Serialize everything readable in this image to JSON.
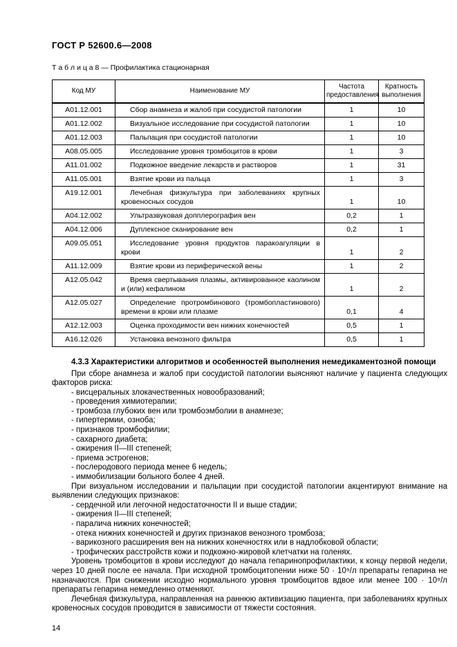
{
  "page": {
    "doc_code": "ГОСТ Р 52600.6—2008",
    "table_caption": "Т а б л и ц а  8 — Профилактика стационарная",
    "page_number": "14"
  },
  "table": {
    "headers": [
      "Код МУ",
      "Наименование МУ",
      "Частота предоставления",
      "Кратность выполнения"
    ],
    "rows": [
      {
        "code": "А01.12.001",
        "name": "Сбор анамнеза и жалоб при сосудистой патологии",
        "freq": "1",
        "mult": "10"
      },
      {
        "code": "А01.12.002",
        "name": "Визуальное исследование при сосудистой патологии",
        "freq": "1",
        "mult": "10"
      },
      {
        "code": "А01.12.003",
        "name": "Пальпация при сосудистой патологии",
        "freq": "1",
        "mult": "10"
      },
      {
        "code": "А08.05.005",
        "name": "Исследование уровня тромбоцитов в крови",
        "freq": "1",
        "mult": "3"
      },
      {
        "code": "А11.01.002",
        "name": "Подкожное введение лекарств и растворов",
        "freq": "1",
        "mult": "31"
      },
      {
        "code": "А11.05.001",
        "name": "Взятие крови из пальца",
        "freq": "1",
        "mult": "3"
      },
      {
        "code": "А19.12.001",
        "name": "Лечебная физкультура при заболеваниях крупных кровеносных сосудов",
        "freq": "1",
        "mult": "10"
      },
      {
        "code": "А04.12.002",
        "name": "Ультразвуковая допплерография вен",
        "freq": "0,2",
        "mult": "1"
      },
      {
        "code": "А04.12.006",
        "name": "Дуплексное сканирование вен",
        "freq": "0,2",
        "mult": "1"
      },
      {
        "code": "А09.05.051",
        "name": "Исследование уровня продуктов паракоагуляции в крови",
        "freq": "1",
        "mult": "2"
      },
      {
        "code": "А11.12.009",
        "name": "Взятие крови из периферической вены",
        "freq": "1",
        "mult": "2"
      },
      {
        "code": "А12.05.042",
        "name": "Время свертывания плазмы, активированное каолином и (или) кефалином",
        "freq": "1",
        "mult": "2"
      },
      {
        "code": "А12.05.027",
        "name": "Определение протромбинового (тромбопластинового) времени в крови или плазме",
        "freq": "0,1",
        "mult": "4"
      },
      {
        "code": "А12.12.003",
        "name": "Оценка проходимости вен нижних конечностей",
        "freq": "0,5",
        "mult": "1"
      },
      {
        "code": "А16.12.026",
        "name": "Установка венозного фильтра",
        "freq": "0,5",
        "mult": "1"
      }
    ]
  },
  "section": {
    "heading": "4.3.3 Характеристики алгоритмов и особенностей выполнения немедикаментозной помощи",
    "content": [
      {
        "type": "p",
        "text": "При сборе анамнеза и жалоб при сосудистой патологии выясняют наличие у пациента следующих факторов риска:"
      },
      {
        "type": "li",
        "text": "- висцеральных злокачественных новообразований;"
      },
      {
        "type": "li",
        "text": "- проведения химиотерапии;"
      },
      {
        "type": "li",
        "text": "- тромбоза глубоких вен или тромбоэмболии в анамнезе;"
      },
      {
        "type": "li",
        "text": "- гипертермии, озноба;"
      },
      {
        "type": "li",
        "text": "- признаков тромбофилии;"
      },
      {
        "type": "li",
        "text": "- сахарного диабета;"
      },
      {
        "type": "li",
        "text": "- ожирения II—III степеней;"
      },
      {
        "type": "li",
        "text": "- приема эстрогенов;"
      },
      {
        "type": "li",
        "text": "- послеродового периода менее 6 недель;"
      },
      {
        "type": "li",
        "text": "- иммобилизации больного более 4 дней."
      },
      {
        "type": "p",
        "text": "При визуальном исследовании и пальпации при сосудистой патологии акцентируют внимание на выявлении следующих признаков:"
      },
      {
        "type": "li",
        "text": "- сердечной или легочной недостаточности II и выше стадии;"
      },
      {
        "type": "li",
        "text": "- ожирения II—III степеней;"
      },
      {
        "type": "li",
        "text": "- паралича нижних конечностей;"
      },
      {
        "type": "li",
        "text": "- отека нижних конечностей и других признаков венозного тромбоза;"
      },
      {
        "type": "li",
        "text": "- варикозного расширения вен на нижних конечностях или в надлобковой области;"
      },
      {
        "type": "li",
        "text": "- трофических расстройств кожи и подкожно-жировой клетчатки на голенях."
      },
      {
        "type": "p",
        "text": "Уровень тромбоцитов в крови исследуют до начала гепаринопрофилактики, к концу первой недели, через 10 дней после ее начала. При исходной тромбоцитопении ниже 50 · 10⁹/л препараты гепарина не назначаются. При снижении исходно нормального уровня тромбоцитов вдвое или менее 100 · 10⁹/л препараты гепарина немедленно отменяют."
      },
      {
        "type": "p",
        "text": "Лечебная физкультура, направленная на раннюю активизацию пациента, при заболеваниях крупных кровеносных сосудов проводится в зависимости от тяжести состояния."
      }
    ]
  }
}
